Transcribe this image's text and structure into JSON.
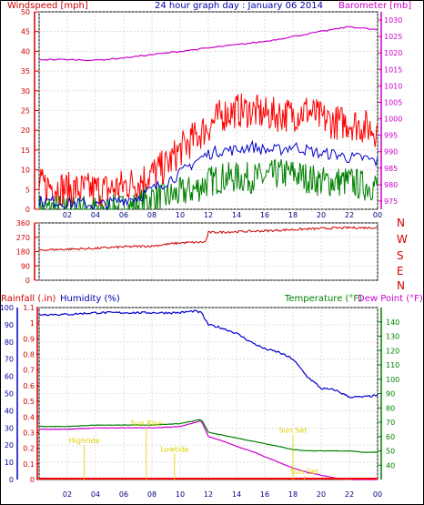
{
  "chart_data": [
    {
      "type": "line",
      "title": "24 hour graph day : January 06 2014",
      "left_axis_label": "Windspeed [mph]",
      "right_axis_label": "Barometer [mb]",
      "left_ylim": [
        0,
        50
      ],
      "left_ticks": [
        0,
        5,
        10,
        15,
        20,
        25,
        30,
        35,
        40,
        45,
        50
      ],
      "right_ylim": [
        972.5,
        1032.5
      ],
      "right_ticks": [
        975,
        980,
        985,
        990,
        995,
        1000,
        1005,
        1010,
        1015,
        1020,
        1025,
        1030
      ],
      "x_ticks": [
        "02",
        "04",
        "06",
        "08",
        "10",
        "12",
        "14",
        "16",
        "18",
        "20",
        "22",
        "00"
      ],
      "grid": true,
      "colors": {
        "gust": "#ff0000",
        "average": "#0000cc",
        "low": "#008000",
        "barometer": "#cc00cc"
      },
      "series": [
        {
          "key": "gust",
          "x": [
            0,
            1,
            2,
            3,
            4,
            5,
            6,
            7,
            8,
            9,
            10,
            11,
            12,
            13,
            14,
            15,
            16,
            17,
            18,
            19,
            20,
            21,
            22,
            23,
            24
          ],
          "values": [
            6,
            6,
            5,
            5,
            5,
            5,
            6,
            7,
            9,
            11,
            15,
            18,
            21,
            24,
            25,
            25,
            24,
            24,
            24,
            25,
            23,
            22,
            22,
            21,
            20
          ]
        },
        {
          "key": "average",
          "x": [
            0,
            1,
            2,
            3,
            4,
            5,
            6,
            7,
            8,
            9,
            10,
            11,
            12,
            13,
            14,
            15,
            16,
            17,
            18,
            19,
            20,
            21,
            22,
            23,
            24
          ],
          "values": [
            2,
            2,
            1.5,
            1.5,
            1,
            1.5,
            2.5,
            3,
            5,
            7,
            9,
            12,
            14,
            15,
            15,
            16,
            15,
            15,
            16,
            15,
            14,
            14,
            13,
            13,
            12
          ]
        },
        {
          "key": "low",
          "x": [
            0,
            1,
            2,
            3,
            4,
            5,
            6,
            7,
            8,
            9,
            10,
            11,
            12,
            13,
            14,
            15,
            16,
            17,
            18,
            19,
            20,
            21,
            22,
            23,
            24
          ],
          "values": [
            0,
            0,
            0,
            0,
            0,
            0,
            0,
            1,
            3,
            3,
            4,
            5,
            7,
            8,
            8,
            8,
            8,
            9,
            9,
            8,
            7,
            7,
            7,
            6,
            6
          ]
        },
        {
          "key": "barometer",
          "x": [
            0,
            2,
            4,
            6,
            8,
            10,
            12,
            14,
            16,
            18,
            20,
            22,
            23,
            24
          ],
          "values": [
            1018,
            1018,
            1017.8,
            1018.5,
            1019.5,
            1020.5,
            1021.5,
            1022.5,
            1023.5,
            1025,
            1026.5,
            1028,
            1027.5,
            1027
          ]
        }
      ]
    },
    {
      "type": "line",
      "right_labels": [
        "N",
        "W",
        "S",
        "E",
        "N"
      ],
      "left_ylim": [
        0,
        360
      ],
      "left_ticks": [
        0,
        90,
        180,
        270,
        360
      ],
      "x_ticks": [
        "02",
        "04",
        "06",
        "08",
        "10",
        "12",
        "14",
        "16",
        "18",
        "20",
        "22",
        "00"
      ],
      "grid": true,
      "colors": {
        "direction": "#cc0000"
      },
      "series": [
        {
          "key": "direction",
          "x": [
            0,
            2,
            4,
            6,
            8,
            10,
            11.8,
            12,
            14,
            16,
            18,
            20,
            22,
            24
          ],
          "values": [
            190,
            195,
            200,
            210,
            215,
            235,
            240,
            300,
            305,
            310,
            318,
            325,
            330,
            330
          ]
        }
      ]
    },
    {
      "type": "line",
      "labels": {
        "rainfall": "Rainfall (.in)",
        "humidity": "Humidity (%)",
        "temperature": "Temperature (°F)",
        "dewpoint": "Dew Point (°F)"
      },
      "left_ylim": [
        0,
        100
      ],
      "left_ticks": [
        0,
        10,
        20,
        30,
        40,
        50,
        60,
        70,
        80,
        90,
        100
      ],
      "rain_ticks": [
        "0",
        "0.1",
        "0.2",
        "0.3",
        "0.4",
        "0.5",
        "0.6",
        "0.7",
        "0.8",
        "0.9",
        "1",
        "1.1"
      ],
      "right_ylim": [
        30,
        150
      ],
      "right_ticks": [
        40,
        50,
        60,
        70,
        80,
        90,
        100,
        110,
        120,
        130,
        140
      ],
      "x_ticks": [
        "02",
        "04",
        "06",
        "08",
        "10",
        "12",
        "14",
        "16",
        "18",
        "20",
        "22",
        "00"
      ],
      "grid": true,
      "colors": {
        "humidity": "#0000cc",
        "temperature": "#008000",
        "dewpoint": "#cc00cc",
        "rainfall": "#ff0000",
        "annotations": "#e0d000"
      },
      "series": [
        {
          "key": "humidity",
          "x": [
            0,
            2,
            4,
            6,
            8,
            10,
            11,
            11.5,
            12,
            13,
            14,
            15,
            16,
            17,
            18,
            19,
            20,
            21,
            22,
            23,
            24
          ],
          "values": [
            96,
            96,
            97,
            97,
            97,
            97,
            98,
            97,
            90,
            88,
            85,
            80,
            76,
            74,
            70,
            60,
            53,
            52,
            48,
            48,
            49
          ]
        },
        {
          "key": "temperature",
          "x": [
            0,
            2,
            4,
            6,
            8,
            10,
            11.5,
            12,
            13,
            14,
            15,
            16,
            17,
            18,
            19,
            20,
            21,
            22,
            23,
            24
          ],
          "values": [
            67,
            67,
            68,
            68,
            68,
            69,
            72,
            63,
            61,
            59,
            57,
            55,
            53,
            51,
            50,
            50,
            50,
            50,
            49,
            49
          ]
        },
        {
          "key": "dewpoint",
          "x": [
            0,
            2,
            4,
            6,
            8,
            10,
            11.5,
            12,
            13,
            14,
            15,
            16,
            17,
            18,
            19,
            20,
            21,
            22,
            23,
            24
          ],
          "values": [
            65,
            65,
            66,
            66,
            66,
            67,
            71,
            60,
            57,
            53,
            50,
            46,
            42,
            38,
            35,
            33,
            31,
            30,
            30,
            30
          ]
        },
        {
          "key": "rainfall",
          "x": [
            0,
            24
          ],
          "values": [
            0,
            0
          ]
        }
      ],
      "annotations": [
        {
          "text": "Highride",
          "x": 3.2,
          "y": 18
        },
        {
          "text": "Sun Rise",
          "x": 7.6,
          "y": 28
        },
        {
          "text": "Lowtide",
          "x": 9.6,
          "y": 13
        },
        {
          "text": "Sun Set",
          "x": 18.0,
          "y": 24
        },
        {
          "text": "Sun Set",
          "x": 18.8,
          "y": 0
        }
      ]
    }
  ]
}
